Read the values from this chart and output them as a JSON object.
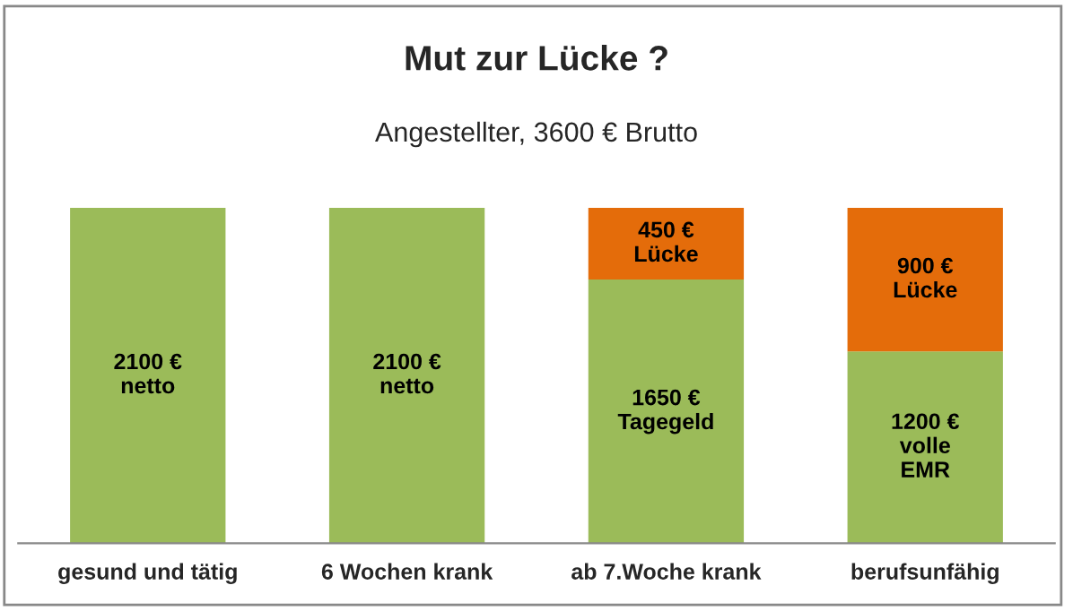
{
  "chart_data": {
    "type": "bar",
    "stacked": true,
    "title": "Mut zur Lücke ?",
    "subtitle": "Angestellter, 3600 € Brutto",
    "categories": [
      "gesund und tätig",
      "6 Wochen krank",
      "ab 7.Woche krank",
      "berufsunfähig"
    ],
    "series": [
      {
        "color": "#9bbb59",
        "values": [
          2100,
          2100,
          1650,
          1200
        ],
        "value_labels": [
          "2100 €\nnetto",
          "2100 €\nnetto",
          "1650 €\nTagegeld",
          "1200 €\nvolle\nEMR"
        ]
      },
      {
        "color": "#e46c0a",
        "values": [
          null,
          null,
          450,
          900
        ],
        "value_labels": [
          null,
          null,
          "450 €\nLücke",
          "900 €\nLücke"
        ]
      }
    ],
    "legend": false,
    "grid": false
  }
}
